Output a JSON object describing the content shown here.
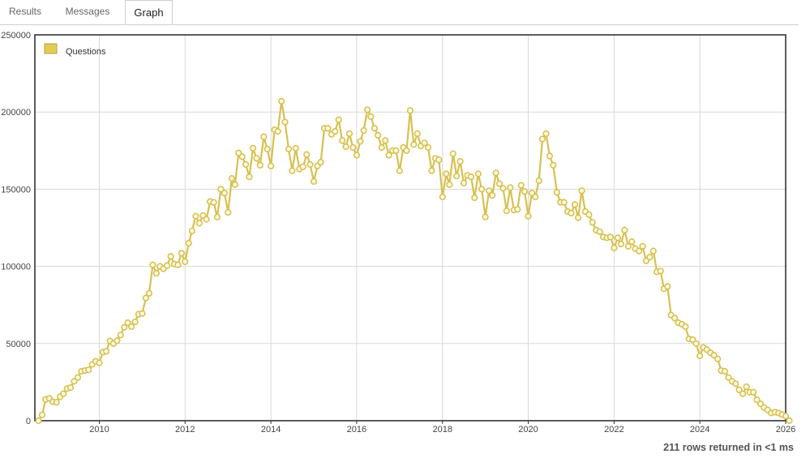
{
  "tabs": [
    {
      "label": "Results",
      "active": false
    },
    {
      "label": "Messages",
      "active": false
    },
    {
      "label": "Graph",
      "active": true
    }
  ],
  "status_text": "211 rows returned in <1 ms",
  "colors": {
    "series_line": "#d8c04f",
    "series_fill": "#e2cc55",
    "grid": "#d8d8d8",
    "axis": "#333333"
  },
  "chart_data": {
    "type": "line",
    "title": "",
    "xlabel": "",
    "ylabel": "",
    "x_axis": "date",
    "xlim": [
      "2008-07-01",
      "2026-01-01"
    ],
    "ylim": [
      0,
      250000
    ],
    "yticks": [
      0,
      50000,
      100000,
      150000,
      200000,
      250000
    ],
    "xticks": [
      "2010",
      "2012",
      "2014",
      "2016",
      "2018",
      "2020",
      "2022",
      "2024",
      "2026"
    ],
    "grid": true,
    "legend": {
      "placement": "top-left",
      "entries": [
        "Questions"
      ]
    },
    "series": [
      {
        "name": "Questions",
        "x": [
          "2008-08",
          "2008-09",
          "2008-10",
          "2008-11",
          "2008-12",
          "2009-01",
          "2009-02",
          "2009-03",
          "2009-04",
          "2009-05",
          "2009-06",
          "2009-07",
          "2009-08",
          "2009-09",
          "2009-10",
          "2009-11",
          "2009-12",
          "2010-01",
          "2010-02",
          "2010-03",
          "2010-04",
          "2010-05",
          "2010-06",
          "2010-07",
          "2010-08",
          "2010-09",
          "2010-10",
          "2010-11",
          "2010-12",
          "2011-01",
          "2011-02",
          "2011-03",
          "2011-04",
          "2011-05",
          "2011-06",
          "2011-07",
          "2011-08",
          "2011-09",
          "2011-10",
          "2011-11",
          "2011-12",
          "2012-01",
          "2012-02",
          "2012-03",
          "2012-04",
          "2012-05",
          "2012-06",
          "2012-07",
          "2012-08",
          "2012-09",
          "2012-10",
          "2012-11",
          "2012-12",
          "2013-01",
          "2013-02",
          "2013-03",
          "2013-04",
          "2013-05",
          "2013-06",
          "2013-07",
          "2013-08",
          "2013-09",
          "2013-10",
          "2013-11",
          "2013-12",
          "2014-01",
          "2014-02",
          "2014-03",
          "2014-04",
          "2014-05",
          "2014-06",
          "2014-07",
          "2014-08",
          "2014-09",
          "2014-10",
          "2014-11",
          "2014-12",
          "2015-01",
          "2015-02",
          "2015-03",
          "2015-04",
          "2015-05",
          "2015-06",
          "2015-07",
          "2015-08",
          "2015-09",
          "2015-10",
          "2015-11",
          "2015-12",
          "2016-01",
          "2016-02",
          "2016-03",
          "2016-04",
          "2016-05",
          "2016-06",
          "2016-07",
          "2016-08",
          "2016-09",
          "2016-10",
          "2016-11",
          "2016-12",
          "2017-01",
          "2017-02",
          "2017-03",
          "2017-04",
          "2017-05",
          "2017-06",
          "2017-07",
          "2017-08",
          "2017-09",
          "2017-10",
          "2017-11",
          "2017-12",
          "2018-01",
          "2018-02",
          "2018-03",
          "2018-04",
          "2018-05",
          "2018-06",
          "2018-07",
          "2018-08",
          "2018-09",
          "2018-10",
          "2018-11",
          "2018-12",
          "2019-01",
          "2019-02",
          "2019-03",
          "2019-04",
          "2019-05",
          "2019-06",
          "2019-07",
          "2019-08",
          "2019-09",
          "2019-10",
          "2019-11",
          "2019-12",
          "2020-01",
          "2020-02",
          "2020-03",
          "2020-04",
          "2020-05",
          "2020-06",
          "2020-07",
          "2020-08",
          "2020-09",
          "2020-10",
          "2020-11",
          "2020-12",
          "2021-01",
          "2021-02",
          "2021-03",
          "2021-04",
          "2021-05",
          "2021-06",
          "2021-07",
          "2021-08",
          "2021-09",
          "2021-10",
          "2021-11",
          "2021-12",
          "2022-01",
          "2022-02",
          "2022-03",
          "2022-04",
          "2022-05",
          "2022-06",
          "2022-07",
          "2022-08",
          "2022-09",
          "2022-10",
          "2022-11",
          "2022-12",
          "2023-01",
          "2023-02",
          "2023-03",
          "2023-04",
          "2023-05",
          "2023-06",
          "2023-07",
          "2023-08",
          "2023-09",
          "2023-10",
          "2023-11",
          "2023-12",
          "2024-01",
          "2024-02",
          "2024-03",
          "2024-04",
          "2024-05",
          "2024-06",
          "2024-07",
          "2024-08",
          "2024-09",
          "2024-10",
          "2024-11",
          "2024-12",
          "2025-01",
          "2025-02",
          "2025-03",
          "2025-04",
          "2025-05",
          "2025-06",
          "2025-07",
          "2025-08",
          "2025-09",
          "2025-10",
          "2025-11",
          "2025-12",
          "2026-01",
          "2026-02"
        ],
        "y": [
          0,
          3800,
          13800,
          14500,
          12300,
          11900,
          15500,
          17500,
          20800,
          21500,
          25500,
          28000,
          32000,
          32500,
          33000,
          36500,
          38500,
          37500,
          44500,
          45000,
          51700,
          50000,
          51800,
          55500,
          60500,
          63500,
          61000,
          64000,
          69000,
          69500,
          79500,
          82500,
          101000,
          95500,
          100000,
          98500,
          100500,
          106500,
          101500,
          101000,
          108500,
          103000,
          115000,
          123000,
          132500,
          128000,
          133000,
          130500,
          142000,
          141500,
          132000,
          150000,
          147500,
          135000,
          157000,
          153000,
          173500,
          171000,
          166000,
          158000,
          176500,
          170000,
          165500,
          184000,
          176000,
          165000,
          188500,
          187500,
          207000,
          193500,
          176000,
          162000,
          176500,
          163000,
          164500,
          172500,
          166000,
          155000,
          165000,
          167500,
          189500,
          189500,
          185500,
          187500,
          195000,
          181500,
          177500,
          186000,
          177000,
          172000,
          181000,
          188000,
          201500,
          197000,
          189500,
          185000,
          177000,
          181500,
          172000,
          175000,
          175000,
          162000,
          177000,
          175000,
          201000,
          179000,
          186000,
          178000,
          180000,
          177000,
          162000,
          170000,
          169000,
          145000,
          160000,
          153000,
          173000,
          158500,
          168000,
          154000,
          159000,
          158000,
          144500,
          160000,
          150000,
          132000,
          149000,
          146000,
          160500,
          153500,
          150500,
          136000,
          151000,
          136500,
          137000,
          152500,
          148500,
          132500,
          147500,
          145000,
          155500,
          182500,
          186000,
          171500,
          165500,
          148000,
          141500,
          141500,
          135500,
          134500,
          140000,
          131500,
          149000,
          135500,
          133500,
          128500,
          123500,
          122500,
          119000,
          118500,
          119000,
          112000,
          118500,
          114500,
          123500,
          113000,
          116000,
          111500,
          110000,
          113000,
          103500,
          106000,
          110000,
          96500,
          97000,
          85500,
          87000,
          68500,
          66500,
          63500,
          62500,
          61000,
          53000,
          52500,
          50000,
          42000,
          47500,
          46000,
          44000,
          42500,
          40000,
          32500,
          32000,
          28000,
          25500,
          24000,
          20000,
          17500,
          22000,
          18500,
          18500,
          13500,
          11000,
          8500,
          7000,
          5000,
          5500,
          5000,
          4000,
          3000,
          0
        ]
      }
    ]
  }
}
